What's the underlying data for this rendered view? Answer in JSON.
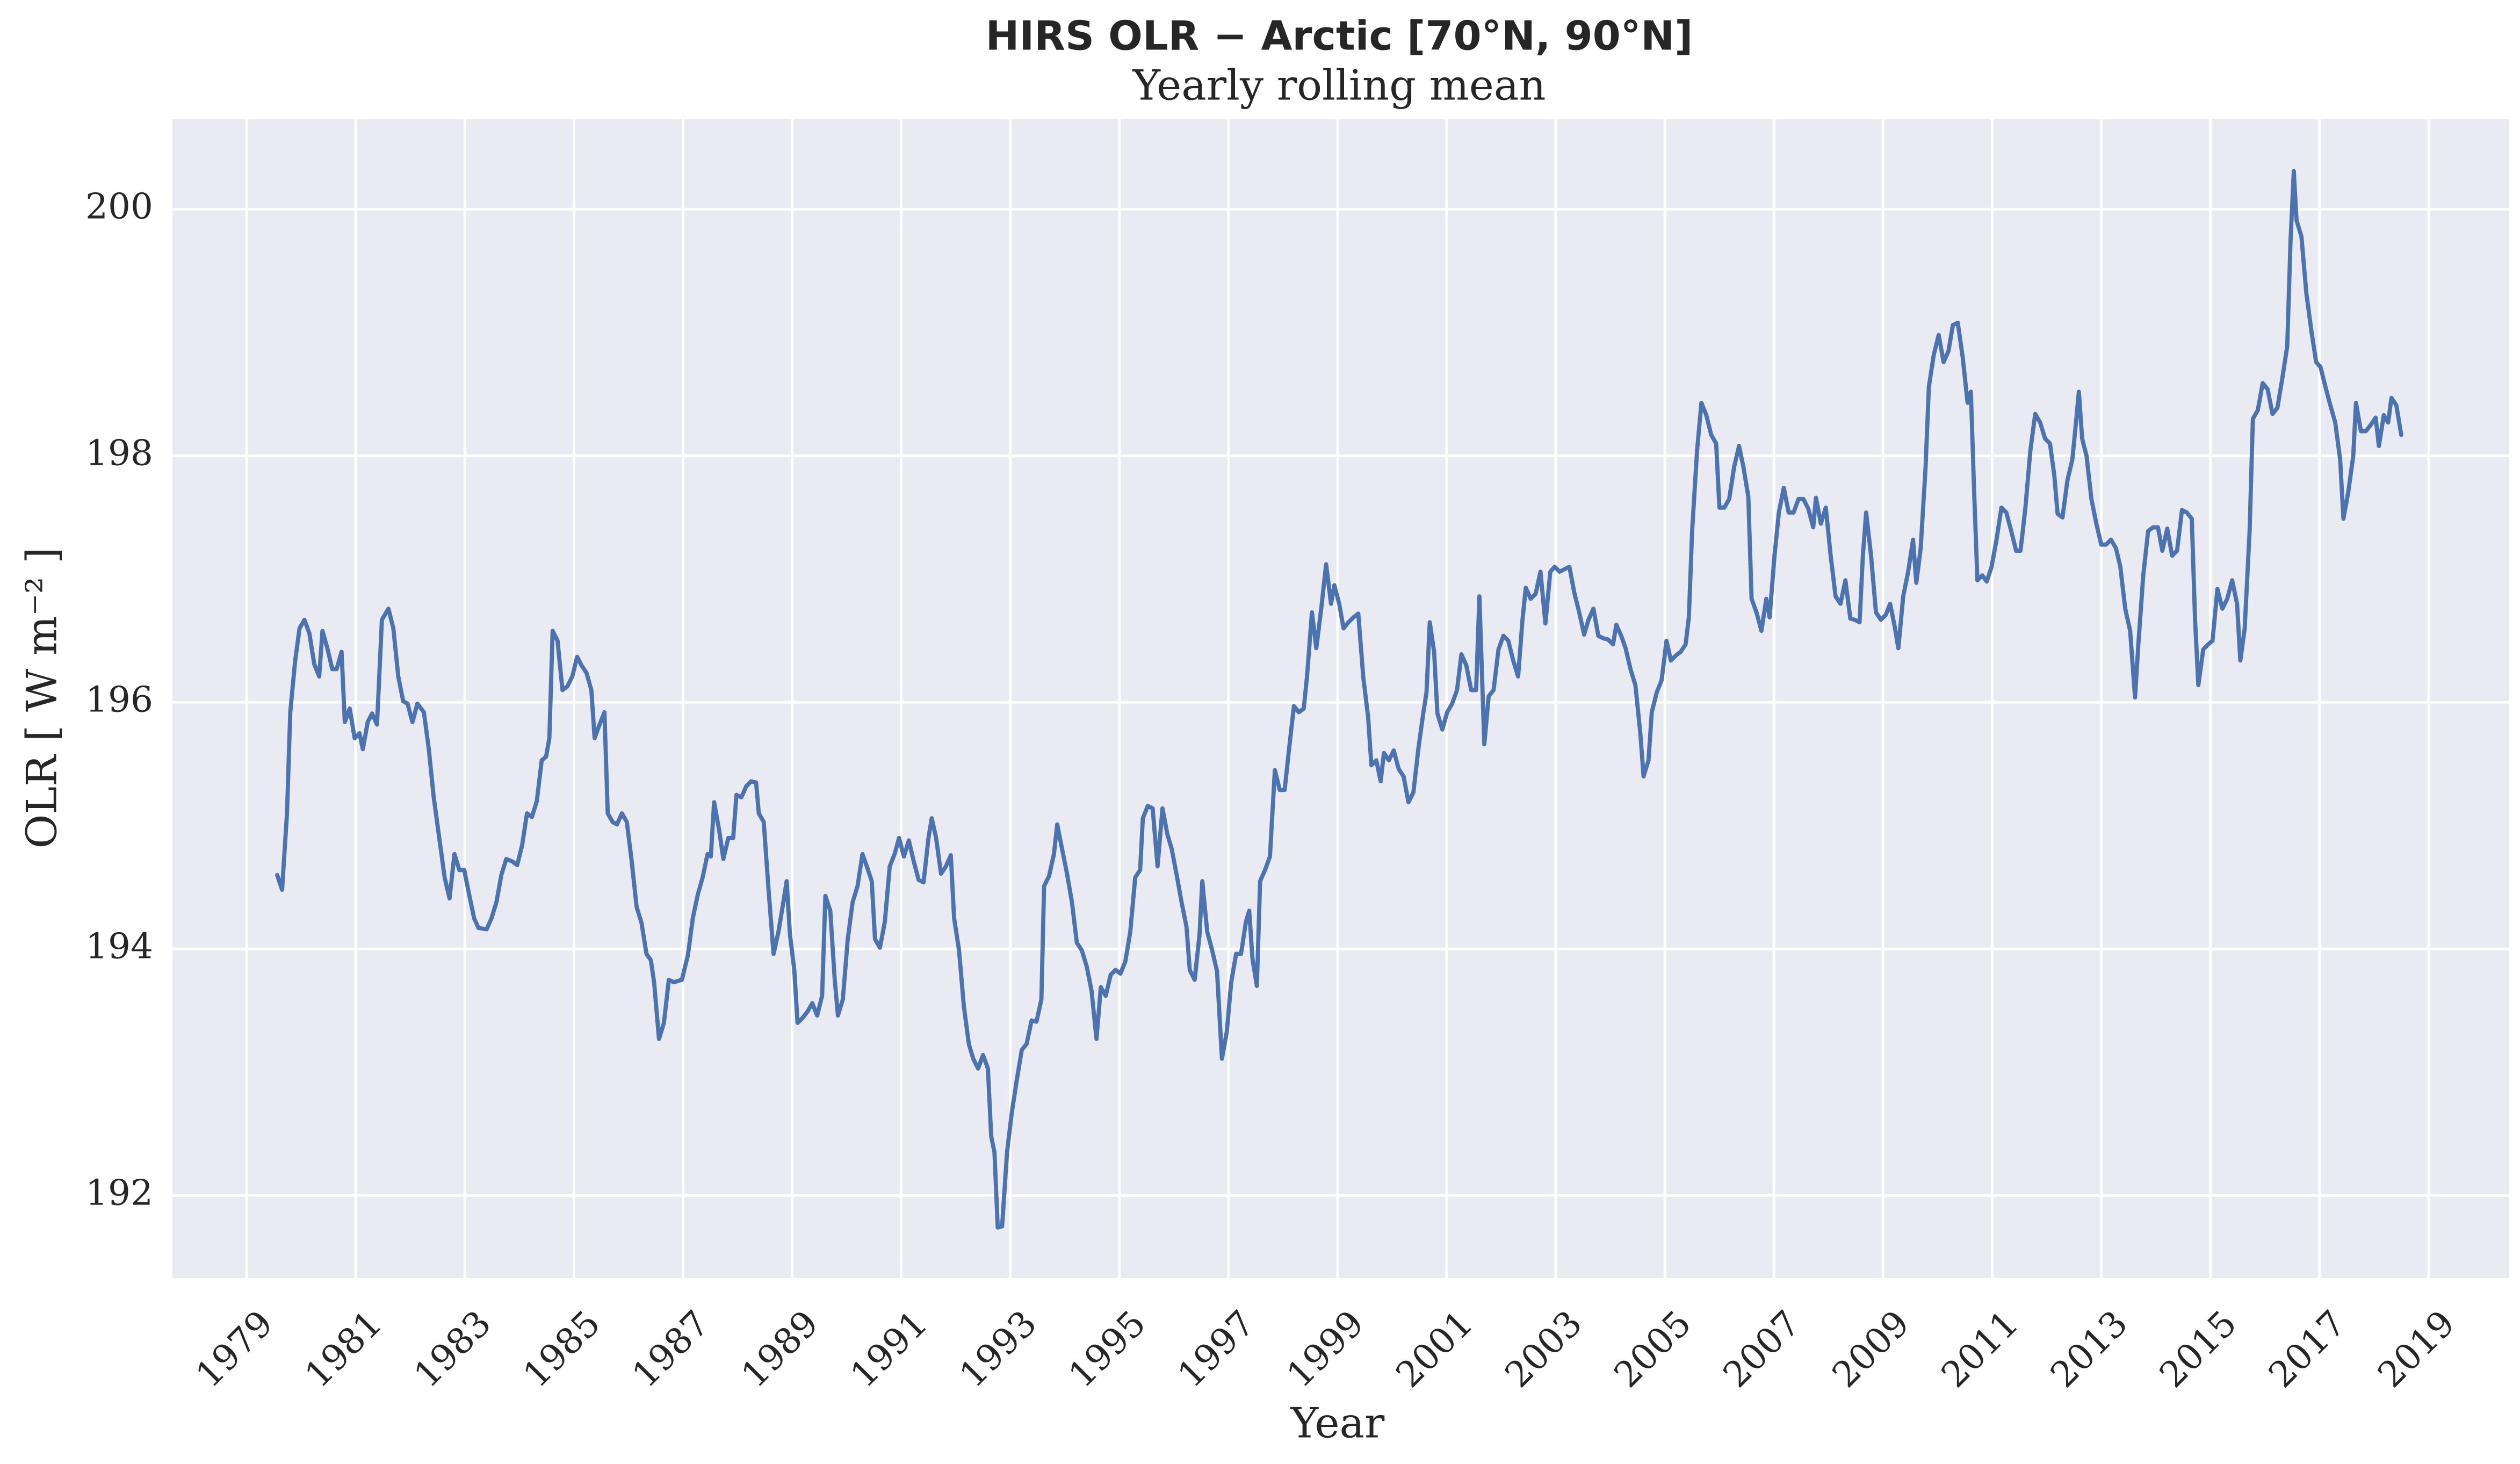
{
  "chart_data": {
    "type": "line",
    "title": "HIRS OLR − Arctic [70°N, 90°N]",
    "subtitle": "Yearly rolling mean",
    "xlabel": "Year",
    "ylabel": "OLR [ W m⁻² ]",
    "xlim": [
      1977.64,
      2020.48
    ],
    "ylim": [
      191.33,
      200.73
    ],
    "xticks": [
      1979,
      1981,
      1983,
      1985,
      1987,
      1989,
      1991,
      1993,
      1995,
      1997,
      1999,
      2001,
      2003,
      2005,
      2007,
      2009,
      2011,
      2013,
      2015,
      2017,
      2019
    ],
    "yticks": [
      192,
      194,
      196,
      198,
      200
    ],
    "grid": true,
    "x": [
      1979.56,
      1979.65,
      1979.74,
      1979.8,
      1979.89,
      1979.97,
      1980.06,
      1980.15,
      1980.24,
      1980.33,
      1980.39,
      1980.48,
      1980.57,
      1980.65,
      1980.74,
      1980.8,
      1980.89,
      1980.98,
      1981.07,
      1981.13,
      1981.22,
      1981.3,
      1981.39,
      1981.48,
      1981.6,
      1981.69,
      1981.78,
      1981.87,
      1981.95,
      1982.04,
      1982.13,
      1982.25,
      1982.34,
      1982.43,
      1982.55,
      1982.63,
      1982.72,
      1982.81,
      1982.9,
      1982.99,
      1983.08,
      1983.17,
      1983.25,
      1983.4,
      1983.49,
      1983.58,
      1983.67,
      1983.76,
      1983.87,
      1983.96,
      1984.05,
      1984.14,
      1984.23,
      1984.32,
      1984.41,
      1984.49,
      1984.55,
      1984.61,
      1984.7,
      1984.79,
      1984.88,
      1984.97,
      1985.06,
      1985.14,
      1985.23,
      1985.32,
      1985.38,
      1985.47,
      1985.56,
      1985.62,
      1985.71,
      1985.79,
      1985.88,
      1985.97,
      1986.06,
      1986.15,
      1986.24,
      1986.33,
      1986.41,
      1986.47,
      1986.56,
      1986.65,
      1986.74,
      1986.83,
      1986.98,
      1987.09,
      1987.18,
      1987.27,
      1987.36,
      1987.45,
      1987.51,
      1987.57,
      1987.66,
      1987.74,
      1987.83,
      1987.92,
      1987.98,
      1988.07,
      1988.16,
      1988.25,
      1988.34,
      1988.39,
      1988.48,
      1988.57,
      1988.66,
      1988.75,
      1988.84,
      1988.9,
      1988.96,
      1989.04,
      1989.1,
      1989.19,
      1989.28,
      1989.37,
      1989.46,
      1989.55,
      1989.61,
      1989.7,
      1989.78,
      1989.84,
      1989.93,
      1990.02,
      1990.11,
      1990.2,
      1990.29,
      1990.37,
      1990.46,
      1990.52,
      1990.61,
      1990.7,
      1990.79,
      1990.88,
      1990.96,
      1991.05,
      1991.14,
      1991.23,
      1991.32,
      1991.41,
      1991.5,
      1991.56,
      1991.64,
      1991.73,
      1991.82,
      1991.91,
      1991.97,
      1992.06,
      1992.15,
      1992.24,
      1992.32,
      1992.41,
      1992.5,
      1992.59,
      1992.65,
      1992.71,
      1992.77,
      1992.85,
      1992.94,
      1993.03,
      1993.12,
      1993.21,
      1993.3,
      1993.39,
      1993.48,
      1993.57,
      1993.62,
      1993.71,
      1993.8,
      1993.86,
      1993.95,
      1994.04,
      1994.13,
      1994.22,
      1994.31,
      1994.4,
      1994.49,
      1994.58,
      1994.66,
      1994.75,
      1994.84,
      1994.93,
      1995.02,
      1995.11,
      1995.2,
      1995.29,
      1995.38,
      1995.43,
      1995.52,
      1995.61,
      1995.7,
      1995.79,
      1995.88,
      1995.96,
      1996.05,
      1996.14,
      1996.23,
      1996.29,
      1996.38,
      1996.47,
      1996.52,
      1996.61,
      1996.7,
      1996.79,
      1996.88,
      1996.97,
      1997.05,
      1997.14,
      1997.23,
      1997.32,
      1997.38,
      1997.44,
      1997.52,
      1997.58,
      1997.67,
      1997.76,
      1997.85,
      1997.94,
      1998.03,
      1998.11,
      1998.2,
      1998.29,
      1998.38,
      1998.44,
      1998.53,
      1998.61,
      1998.7,
      1998.79,
      1998.88,
      1998.94,
      1999.03,
      1999.11,
      1999.2,
      1999.29,
      1999.38,
      1999.47,
      1999.56,
      1999.62,
      1999.71,
      1999.79,
      1999.85,
      1999.94,
      2000.03,
      2000.12,
      2000.21,
      2000.3,
      2000.39,
      2000.48,
      2000.57,
      2000.63,
      2000.69,
      2000.77,
      2000.83,
      2000.92,
      2001.01,
      2001.1,
      2001.19,
      2001.27,
      2001.36,
      2001.45,
      2001.54,
      2001.6,
      2001.69,
      2001.77,
      2001.86,
      2001.95,
      2002.04,
      2002.13,
      2002.22,
      2002.31,
      2002.39,
      2002.45,
      2002.54,
      2002.63,
      2002.72,
      2002.81,
      2002.9,
      2002.98,
      2003.07,
      2003.16,
      2003.25,
      2003.34,
      2003.43,
      2003.52,
      2003.6,
      2003.69,
      2003.78,
      2003.87,
      2003.96,
      2004.05,
      2004.11,
      2004.2,
      2004.28,
      2004.37,
      2004.46,
      2004.55,
      2004.61,
      2004.7,
      2004.76,
      2004.85,
      2004.94,
      2005.03,
      2005.11,
      2005.2,
      2005.29,
      2005.38,
      2005.44,
      2005.5,
      2005.59,
      2005.67,
      2005.76,
      2005.85,
      2005.94,
      2006.0,
      2006.09,
      2006.18,
      2006.27,
      2006.36,
      2006.44,
      2006.53,
      2006.59,
      2006.68,
      2006.77,
      2006.86,
      2006.92,
      2007.01,
      2007.09,
      2007.18,
      2007.27,
      2007.36,
      2007.45,
      2007.54,
      2007.63,
      2007.72,
      2007.77,
      2007.86,
      2007.95,
      2008.04,
      2008.13,
      2008.22,
      2008.31,
      2008.4,
      2008.48,
      2008.57,
      2008.63,
      2008.69,
      2008.78,
      2008.87,
      2008.96,
      2009.05,
      2009.13,
      2009.22,
      2009.28,
      2009.37,
      2009.46,
      2009.55,
      2009.61,
      2009.69,
      2009.78,
      2009.84,
      2009.93,
      2010.02,
      2010.11,
      2010.2,
      2010.28,
      2010.37,
      2010.46,
      2010.55,
      2010.61,
      2010.67,
      2010.73,
      2010.82,
      2010.9,
      2010.99,
      2011.08,
      2011.17,
      2011.26,
      2011.35,
      2011.44,
      2011.52,
      2011.61,
      2011.7,
      2011.79,
      2011.88,
      2011.97,
      2012.06,
      2012.14,
      2012.2,
      2012.29,
      2012.38,
      2012.47,
      2012.53,
      2012.59,
      2012.65,
      2012.73,
      2012.82,
      2012.91,
      2013.0,
      2013.09,
      2013.18,
      2013.27,
      2013.35,
      2013.44,
      2013.53,
      2013.62,
      2013.68,
      2013.77,
      2013.86,
      2013.95,
      2014.04,
      2014.12,
      2014.21,
      2014.3,
      2014.39,
      2014.48,
      2014.57,
      2014.66,
      2014.72,
      2014.78,
      2014.87,
      2014.96,
      2015.04,
      2015.13,
      2015.22,
      2015.31,
      2015.4,
      2015.49,
      2015.55,
      2015.63,
      2015.72,
      2015.78,
      2015.87,
      2015.96,
      2016.05,
      2016.14,
      2016.23,
      2016.32,
      2016.41,
      2016.47,
      2016.53,
      2016.58,
      2016.67,
      2016.76,
      2016.85,
      2016.94,
      2017.02,
      2017.11,
      2017.2,
      2017.29,
      2017.38,
      2017.44,
      2017.53,
      2017.62,
      2017.67,
      2017.76,
      2017.85,
      2017.94,
      2018.03,
      2018.09,
      2018.18,
      2018.26,
      2018.32,
      2018.41,
      2018.5
    ],
    "series": [
      {
        "name": "OLR",
        "color": "#4c72b0",
        "values": [
          194.6,
          194.48,
          195.1,
          195.92,
          196.34,
          196.6,
          196.67,
          196.56,
          196.31,
          196.21,
          196.58,
          196.44,
          196.27,
          196.27,
          196.41,
          195.84,
          195.95,
          195.71,
          195.75,
          195.62,
          195.84,
          195.91,
          195.82,
          196.67,
          196.76,
          196.6,
          196.21,
          196.01,
          195.99,
          195.84,
          195.99,
          195.92,
          195.62,
          195.23,
          194.84,
          194.58,
          194.41,
          194.77,
          194.64,
          194.64,
          194.44,
          194.25,
          194.17,
          194.16,
          194.25,
          194.38,
          194.6,
          194.73,
          194.71,
          194.68,
          194.84,
          195.1,
          195.07,
          195.2,
          195.53,
          195.56,
          195.71,
          196.58,
          196.5,
          196.1,
          196.13,
          196.21,
          196.37,
          196.3,
          196.24,
          196.1,
          195.71,
          195.82,
          195.92,
          195.1,
          195.03,
          195.01,
          195.1,
          195.03,
          194.71,
          194.34,
          194.21,
          193.96,
          193.91,
          193.73,
          193.27,
          193.4,
          193.75,
          193.73,
          193.75,
          193.95,
          194.25,
          194.44,
          194.58,
          194.77,
          194.75,
          195.19,
          194.97,
          194.73,
          194.9,
          194.9,
          195.25,
          195.23,
          195.32,
          195.36,
          195.35,
          195.1,
          195.03,
          194.47,
          193.96,
          194.14,
          194.38,
          194.55,
          194.12,
          193.83,
          193.4,
          193.44,
          193.49,
          193.56,
          193.46,
          193.62,
          194.43,
          194.31,
          193.76,
          193.46,
          193.59,
          194.08,
          194.38,
          194.51,
          194.77,
          194.67,
          194.55,
          194.08,
          194.01,
          194.22,
          194.67,
          194.77,
          194.9,
          194.75,
          194.88,
          194.71,
          194.56,
          194.54,
          194.9,
          195.06,
          194.9,
          194.61,
          194.67,
          194.76,
          194.25,
          193.99,
          193.53,
          193.23,
          193.11,
          193.03,
          193.14,
          193.03,
          192.48,
          192.35,
          191.74,
          191.75,
          192.35,
          192.68,
          192.94,
          193.18,
          193.23,
          193.42,
          193.41,
          193.59,
          194.51,
          194.59,
          194.77,
          195.01,
          194.81,
          194.61,
          194.38,
          194.05,
          193.99,
          193.86,
          193.66,
          193.27,
          193.69,
          193.62,
          193.79,
          193.83,
          193.8,
          193.9,
          194.14,
          194.58,
          194.64,
          195.06,
          195.16,
          195.14,
          194.67,
          195.14,
          194.93,
          194.81,
          194.6,
          194.38,
          194.18,
          193.83,
          193.75,
          194.12,
          194.55,
          194.14,
          193.99,
          193.82,
          193.11,
          193.33,
          193.73,
          193.96,
          193.96,
          194.22,
          194.31,
          193.92,
          193.7,
          194.55,
          194.64,
          194.75,
          195.45,
          195.29,
          195.29,
          195.62,
          195.97,
          195.92,
          195.95,
          196.21,
          196.73,
          196.44,
          196.76,
          197.12,
          196.8,
          196.95,
          196.8,
          196.6,
          196.65,
          196.69,
          196.72,
          196.21,
          195.88,
          195.49,
          195.53,
          195.36,
          195.59,
          195.53,
          195.61,
          195.46,
          195.4,
          195.19,
          195.27,
          195.62,
          195.91,
          196.08,
          196.65,
          196.41,
          195.91,
          195.78,
          195.92,
          195.99,
          196.1,
          196.39,
          196.3,
          196.1,
          196.1,
          196.86,
          195.66,
          196.05,
          196.1,
          196.43,
          196.54,
          196.5,
          196.34,
          196.21,
          196.67,
          196.93,
          196.84,
          196.88,
          197.06,
          196.64,
          197.06,
          197.1,
          197.06,
          197.08,
          197.1,
          196.89,
          196.73,
          196.55,
          196.67,
          196.76,
          196.54,
          196.52,
          196.51,
          196.47,
          196.63,
          196.54,
          196.44,
          196.27,
          196.14,
          195.75,
          195.4,
          195.53,
          195.92,
          196.08,
          196.18,
          196.5,
          196.34,
          196.38,
          196.41,
          196.47,
          196.69,
          197.39,
          198.04,
          198.43,
          198.33,
          198.17,
          198.1,
          197.58,
          197.58,
          197.65,
          197.91,
          198.08,
          197.91,
          197.67,
          196.84,
          196.73,
          196.58,
          196.84,
          196.69,
          197.19,
          197.54,
          197.74,
          197.54,
          197.54,
          197.65,
          197.65,
          197.57,
          197.42,
          197.66,
          197.45,
          197.58,
          197.19,
          196.86,
          196.8,
          196.99,
          196.68,
          196.67,
          196.65,
          197.19,
          197.54,
          197.19,
          196.73,
          196.67,
          196.71,
          196.8,
          196.6,
          196.44,
          196.86,
          197.06,
          197.32,
          196.97,
          197.25,
          197.91,
          198.56,
          198.82,
          198.98,
          198.76,
          198.85,
          199.06,
          199.08,
          198.8,
          198.43,
          198.52,
          197.71,
          196.99,
          197.03,
          196.98,
          197.1,
          197.32,
          197.58,
          197.54,
          197.39,
          197.23,
          197.23,
          197.58,
          198.04,
          198.34,
          198.27,
          198.14,
          198.1,
          197.84,
          197.53,
          197.5,
          197.8,
          197.97,
          198.24,
          198.52,
          198.14,
          198.0,
          197.65,
          197.45,
          197.28,
          197.28,
          197.32,
          197.25,
          197.1,
          196.76,
          196.58,
          196.04,
          196.47,
          197.03,
          197.39,
          197.42,
          197.42,
          197.23,
          197.41,
          197.19,
          197.23,
          197.56,
          197.54,
          197.49,
          196.67,
          196.14,
          196.43,
          196.47,
          196.5,
          196.92,
          196.76,
          196.84,
          196.99,
          196.8,
          196.34,
          196.6,
          197.39,
          198.3,
          198.37,
          198.59,
          198.54,
          198.34,
          198.39,
          198.63,
          198.89,
          199.74,
          200.31,
          199.91,
          199.78,
          199.32,
          199.02,
          198.76,
          198.72,
          198.56,
          198.41,
          198.27,
          197.97,
          197.49,
          197.71,
          198.0,
          198.43,
          198.2,
          198.2,
          198.25,
          198.31,
          198.08,
          198.33,
          198.27,
          198.47,
          198.41,
          198.17
        ]
      }
    ]
  }
}
